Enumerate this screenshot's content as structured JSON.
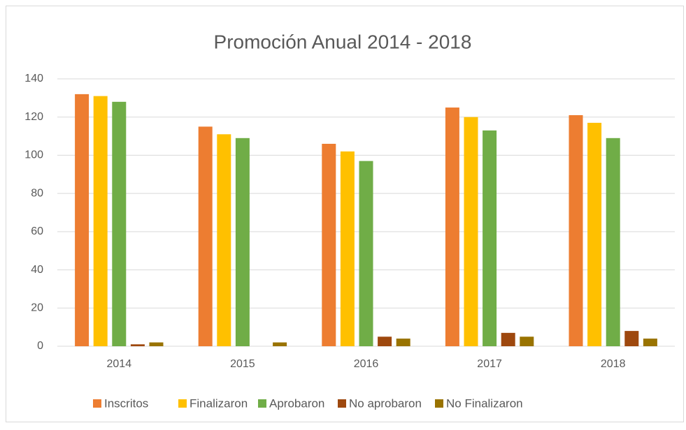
{
  "chart_data": {
    "type": "bar",
    "title": "Promoción Anual 2014 - 2018",
    "categories": [
      "2014",
      "2015",
      "2016",
      "2017",
      "2018"
    ],
    "series": [
      {
        "name": "Inscritos",
        "color": "#ed7d31",
        "values": [
          132,
          115,
          106,
          125,
          121
        ]
      },
      {
        "name": "Finalizaron",
        "color": "#ffc000",
        "values": [
          131,
          111,
          102,
          120,
          117
        ]
      },
      {
        "name": "Aprobaron",
        "color": "#70ad47",
        "values": [
          128,
          109,
          97,
          113,
          109
        ]
      },
      {
        "name": "No aprobaron",
        "color": "#9e480e",
        "values": [
          1,
          0,
          5,
          7,
          8
        ]
      },
      {
        "name": "No Finalizaron",
        "color": "#997300",
        "values": [
          2,
          2,
          4,
          5,
          4
        ]
      }
    ],
    "ylim": [
      0,
      140
    ],
    "yticks": [
      0,
      20,
      40,
      60,
      80,
      100,
      120,
      140
    ],
    "grid": true,
    "legend": "bottom"
  }
}
